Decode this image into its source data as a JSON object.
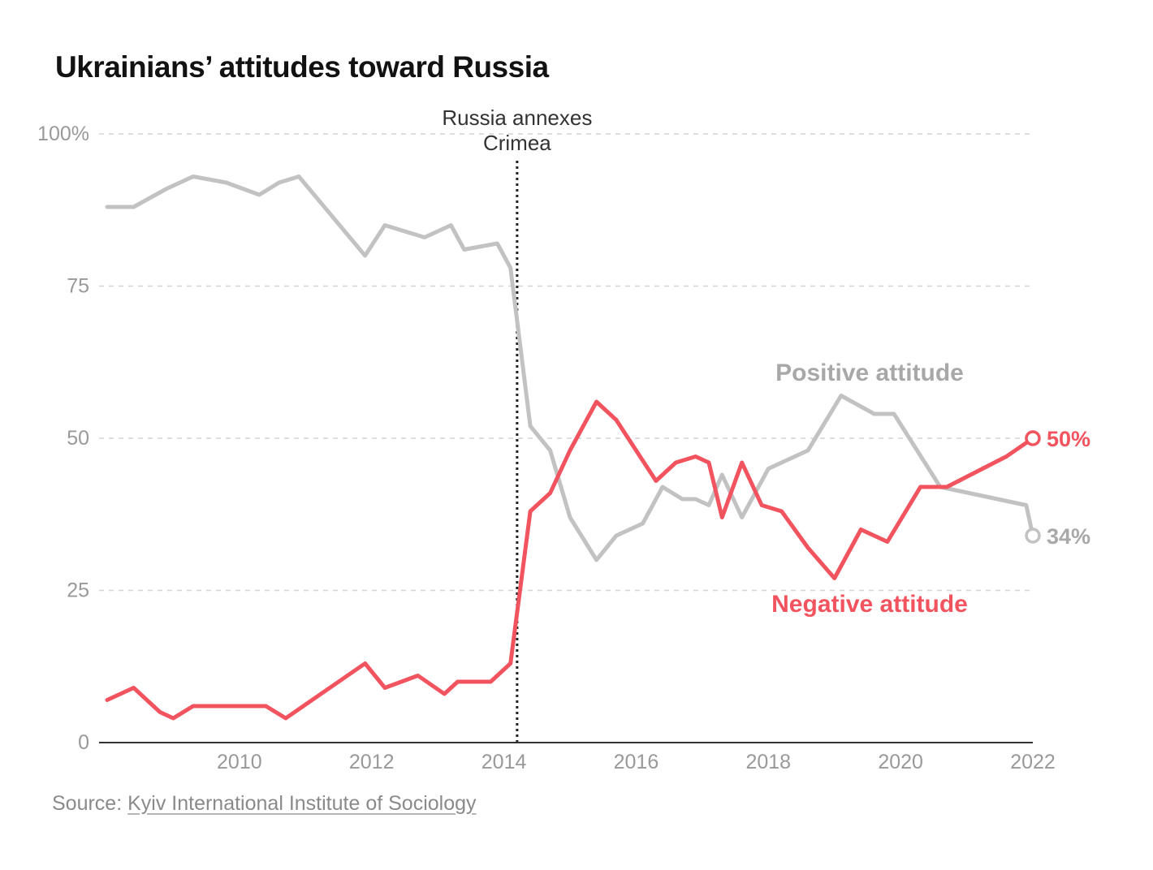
{
  "chart_data": {
    "type": "line",
    "title": "Ukrainians’ attitudes toward Russia",
    "xlabel": "",
    "ylabel": "",
    "xlim": [
      2008,
      2022
    ],
    "ylim": [
      0,
      100
    ],
    "x_ticks": [
      2010,
      2012,
      2014,
      2016,
      2018,
      2020,
      2022
    ],
    "x_tick_labels": [
      "2010",
      "2012",
      "2014",
      "2016",
      "2018",
      "2020",
      "2022"
    ],
    "y_ticks": [
      0,
      25,
      50,
      75,
      100
    ],
    "y_tick_labels": [
      "0",
      "25",
      "50",
      "75",
      "100%"
    ],
    "grid": true,
    "annotation": {
      "x": 2014.2,
      "lines": [
        "Russia annexes",
        "Crimea"
      ]
    },
    "series": [
      {
        "name": "Positive attitude",
        "color": "#c2c2c2",
        "end_label": "34%",
        "points": [
          [
            2008.0,
            88
          ],
          [
            2008.4,
            88
          ],
          [
            2008.9,
            91
          ],
          [
            2009.3,
            93
          ],
          [
            2009.8,
            92
          ],
          [
            2010.3,
            90
          ],
          [
            2010.6,
            92
          ],
          [
            2010.9,
            93
          ],
          [
            2011.9,
            80
          ],
          [
            2012.2,
            85
          ],
          [
            2012.8,
            83
          ],
          [
            2013.2,
            85
          ],
          [
            2013.4,
            81
          ],
          [
            2013.9,
            82
          ],
          [
            2014.1,
            78
          ],
          [
            2014.4,
            52
          ],
          [
            2014.7,
            48
          ],
          [
            2015.0,
            37
          ],
          [
            2015.4,
            30
          ],
          [
            2015.7,
            34
          ],
          [
            2016.1,
            36
          ],
          [
            2016.4,
            42
          ],
          [
            2016.7,
            40
          ],
          [
            2016.9,
            40
          ],
          [
            2017.1,
            39
          ],
          [
            2017.3,
            44
          ],
          [
            2017.6,
            37
          ],
          [
            2018.0,
            45
          ],
          [
            2018.6,
            48
          ],
          [
            2019.1,
            57
          ],
          [
            2019.6,
            54
          ],
          [
            2019.9,
            54
          ],
          [
            2020.6,
            42
          ],
          [
            2021.9,
            39
          ],
          [
            2022.0,
            34
          ]
        ]
      },
      {
        "name": "Negative attitude",
        "color": "#f2545f",
        "end_label": "50%",
        "points": [
          [
            2008.0,
            7
          ],
          [
            2008.4,
            9
          ],
          [
            2008.8,
            5
          ],
          [
            2009.0,
            4
          ],
          [
            2009.3,
            6
          ],
          [
            2010.0,
            6
          ],
          [
            2010.4,
            6
          ],
          [
            2010.7,
            4
          ],
          [
            2011.9,
            13
          ],
          [
            2012.2,
            9
          ],
          [
            2012.7,
            11
          ],
          [
            2013.1,
            8
          ],
          [
            2013.3,
            10
          ],
          [
            2013.8,
            10
          ],
          [
            2014.1,
            13
          ],
          [
            2014.4,
            38
          ],
          [
            2014.7,
            41
          ],
          [
            2015.0,
            48
          ],
          [
            2015.4,
            56
          ],
          [
            2015.7,
            53
          ],
          [
            2016.0,
            48
          ],
          [
            2016.3,
            43
          ],
          [
            2016.6,
            46
          ],
          [
            2016.9,
            47
          ],
          [
            2017.1,
            46
          ],
          [
            2017.3,
            37
          ],
          [
            2017.6,
            46
          ],
          [
            2017.9,
            39
          ],
          [
            2018.2,
            38
          ],
          [
            2018.6,
            32
          ],
          [
            2019.0,
            27
          ],
          [
            2019.4,
            35
          ],
          [
            2019.8,
            33
          ],
          [
            2020.3,
            42
          ],
          [
            2020.7,
            42
          ],
          [
            2021.6,
            47
          ],
          [
            2022.0,
            50
          ]
        ]
      }
    ]
  },
  "source": {
    "prefix": "Source: ",
    "link_text": "Kyiv International Institute of Sociology"
  }
}
